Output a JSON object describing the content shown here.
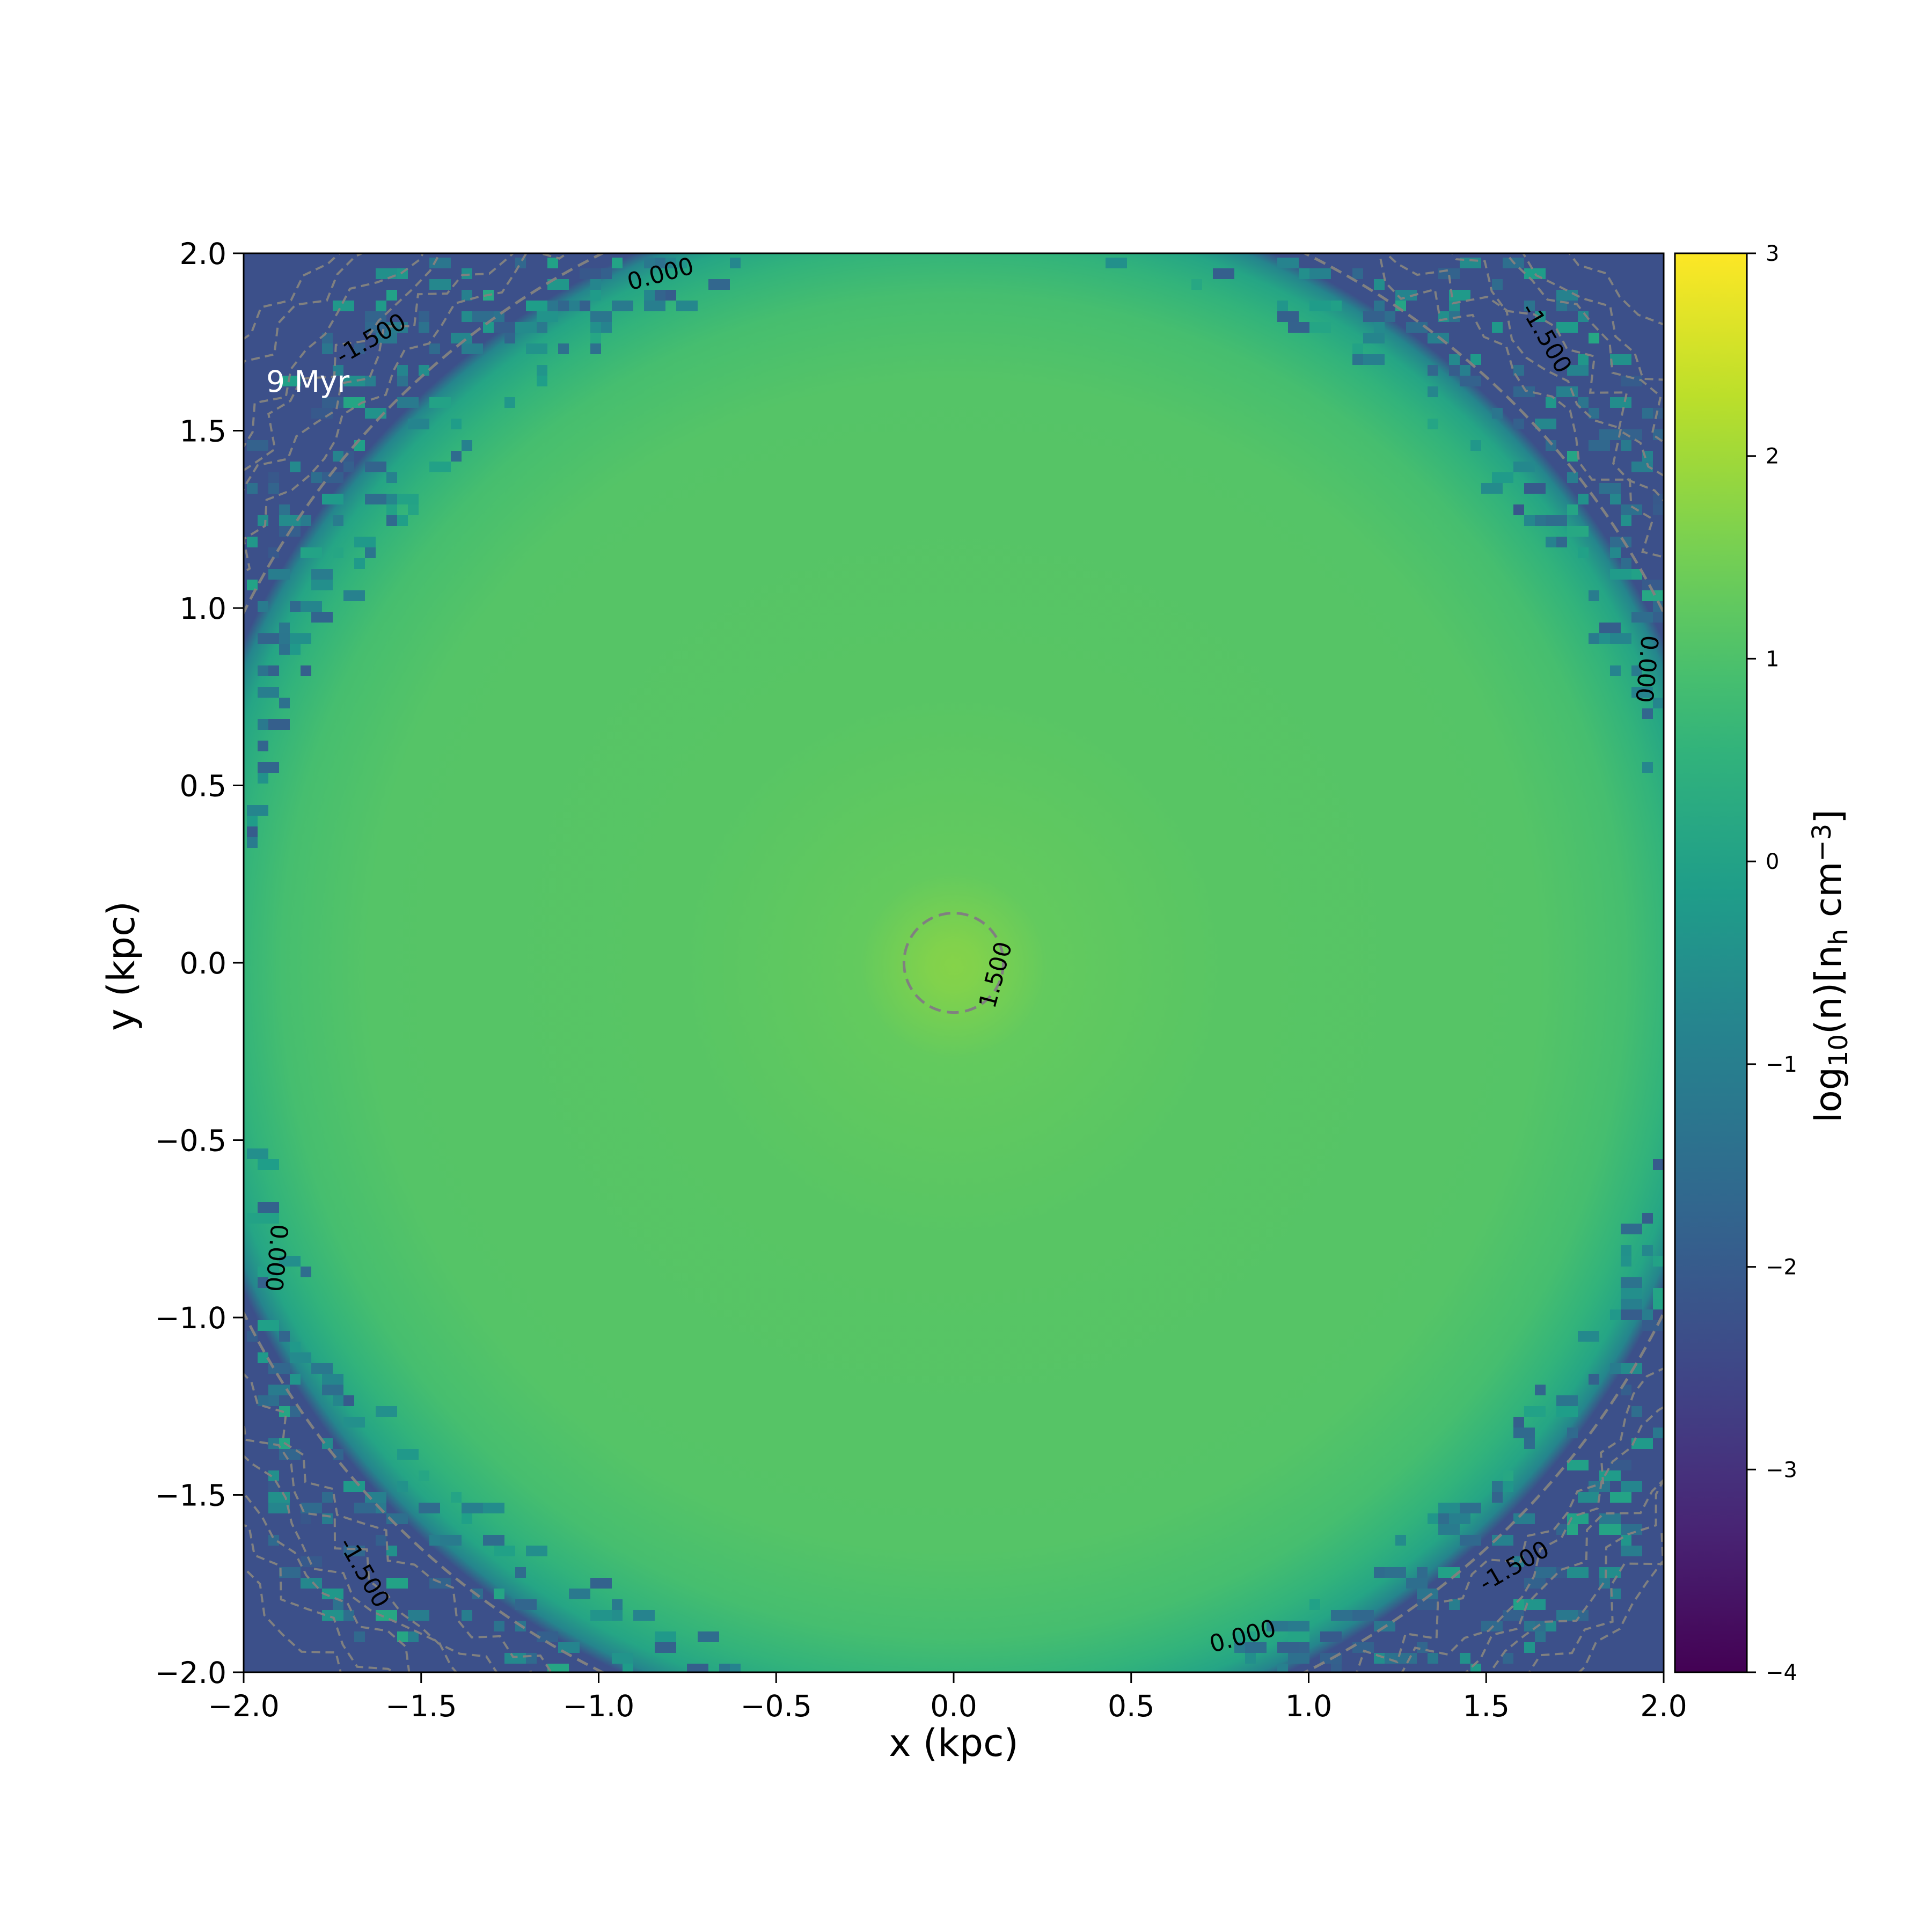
{
  "chart_data": {
    "type": "heatmap",
    "title": "",
    "xlabel": "x (kpc)",
    "ylabel": "y (kpc)",
    "xlim": [
      -2.0,
      2.0
    ],
    "ylim": [
      -2.0,
      2.0
    ],
    "x_ticks": [
      "−2.0",
      "−1.5",
      "−1.0",
      "−0.5",
      "0.0",
      "0.5",
      "1.0",
      "1.5",
      "2.0"
    ],
    "x_tick_values": [
      -2.0,
      -1.5,
      -1.0,
      -0.5,
      0.0,
      0.5,
      1.0,
      1.5,
      2.0
    ],
    "y_ticks": [
      "−2.0",
      "−1.5",
      "−1.0",
      "−0.5",
      "0.0",
      "0.5",
      "1.0",
      "1.5",
      "2.0"
    ],
    "y_tick_values": [
      -2.0,
      -1.5,
      -1.0,
      -0.5,
      0.0,
      0.5,
      1.0,
      1.5,
      2.0
    ],
    "annotation": "9 Myr",
    "colormap": "viridis",
    "colorbar": {
      "label_parts": [
        "log",
        "10",
        "(n)[n",
        "h",
        " cm",
        "−3",
        "]"
      ],
      "ticks": [
        "−4",
        "−3",
        "−2",
        "−1",
        "0",
        "1",
        "2",
        "3"
      ],
      "tick_values": [
        -4,
        -3,
        -2,
        -1,
        0,
        1,
        2,
        3
      ],
      "range": [
        -4,
        3
      ]
    },
    "grid": false,
    "field_description": {
      "center_value": 1.7,
      "core_value": 1.5,
      "plateau_value": 1.15,
      "shell_value": 0.1,
      "ambient_value": -2.3,
      "core_radius_kpc": 0.14,
      "shell_radius_kpc": 2.2
    },
    "contours": [
      {
        "level": 1.5,
        "label": "1.500",
        "color": "#808080",
        "style": "dashed"
      },
      {
        "level": 0.0,
        "label": "0.000",
        "color": "#808080",
        "style": "dashed"
      },
      {
        "level": -1.5,
        "label": "-1.500",
        "color": "#808080",
        "style": "dashed"
      }
    ]
  }
}
